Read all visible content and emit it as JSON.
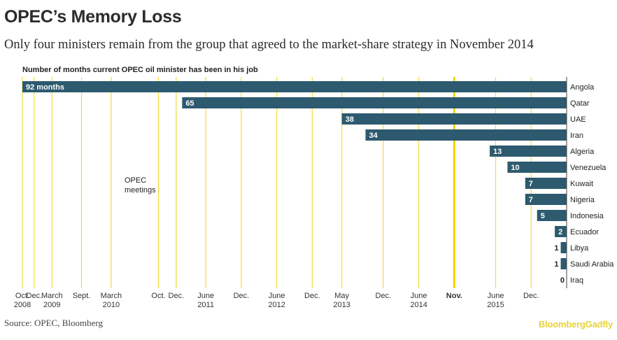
{
  "header": {
    "title": "OPEC’s Memory Loss",
    "subtitle": "Only four ministers remain from the group that agreed to the market-share strategy in November 2014"
  },
  "footer": {
    "source": "Source: OPEC, Bloomberg",
    "brand": "BloombergGadfly"
  },
  "colors": {
    "bar": "#2d5a6e",
    "meeting_line": "#f2dc3c",
    "highlight_line": "#f0d400",
    "text": "#222222"
  },
  "chart_data": {
    "type": "bar",
    "orientation": "horizontal",
    "title": "Number of months current OPEC oil minister has been in his job",
    "annotation": "OPEC meetings",
    "categories": [
      "Angola",
      "Qatar",
      "UAE",
      "Iran",
      "Algeria",
      "Venezuela",
      "Kuwait",
      "Nigeria",
      "Indonesia",
      "Ecuador",
      "Libya",
      "Saudi Arabia",
      "Iraq"
    ],
    "values": [
      92,
      65,
      38,
      34,
      13,
      10,
      7,
      7,
      5,
      2,
      1,
      1,
      0
    ],
    "value_labels": [
      "92 months",
      "65",
      "38",
      "34",
      "13",
      "10",
      "7",
      "7",
      "5",
      "2",
      "1",
      "1",
      "0"
    ],
    "x_axis": {
      "reference": "2016-09",
      "range_months_before_reference": [
        0,
        92
      ],
      "meetings": [
        {
          "months_before": 92,
          "label": [
            "Oct.",
            "2008"
          ],
          "highlight": false
        },
        {
          "months_before": 90,
          "label": [
            "Dec."
          ],
          "highlight": false
        },
        {
          "months_before": 87,
          "label": [
            "March",
            "2009"
          ],
          "highlight": false
        },
        {
          "months_before": 82,
          "label": [
            "Sept."
          ],
          "highlight": false
        },
        {
          "months_before": 77,
          "label": [
            "March",
            "2010"
          ],
          "highlight": false
        },
        {
          "months_before": 69,
          "label": [
            "Oct."
          ],
          "highlight": false
        },
        {
          "months_before": 66,
          "label": [
            "Dec."
          ],
          "highlight": false
        },
        {
          "months_before": 61,
          "label": [
            "June",
            "2011"
          ],
          "highlight": false
        },
        {
          "months_before": 55,
          "label": [
            "Dec."
          ],
          "highlight": false
        },
        {
          "months_before": 49,
          "label": [
            "June",
            "2012"
          ],
          "highlight": false
        },
        {
          "months_before": 43,
          "label": [
            "Dec."
          ],
          "highlight": false
        },
        {
          "months_before": 38,
          "label": [
            "May",
            "2013"
          ],
          "highlight": false
        },
        {
          "months_before": 31,
          "label": [
            "Dec."
          ],
          "highlight": false
        },
        {
          "months_before": 25,
          "label": [
            "June",
            "2014"
          ],
          "highlight": false
        },
        {
          "months_before": 19,
          "label": [
            "Nov."
          ],
          "highlight": true
        },
        {
          "months_before": 12,
          "label": [
            "June",
            "2015"
          ],
          "highlight": false
        },
        {
          "months_before": 6,
          "label": [
            "Dec."
          ],
          "highlight": false
        }
      ]
    }
  }
}
